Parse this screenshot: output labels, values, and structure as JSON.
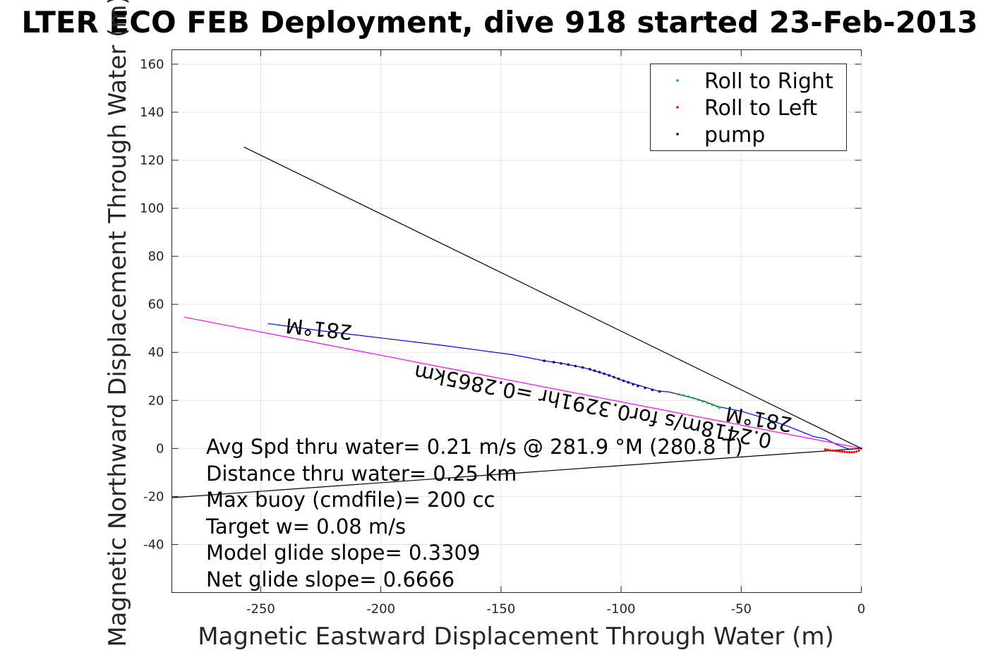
{
  "chart_data": {
    "type": "line",
    "title": "LTER ECO FEB Deployment, dive 918 started 23-Feb-2013",
    "xlabel": "Magnetic Eastward Displacement Through Water (m)",
    "ylabel": "Magnetic Northward Displacement Through Water (m)",
    "xlim": [
      -287,
      0
    ],
    "ylim": [
      -60,
      166
    ],
    "xticks": [
      -250,
      -200,
      -150,
      -100,
      -50,
      0
    ],
    "yticks": [
      -40,
      -20,
      0,
      20,
      40,
      60,
      80,
      100,
      120,
      140,
      160
    ],
    "grid": true,
    "legend": {
      "placement": "top-right",
      "entries": [
        {
          "label": "Roll to Right",
          "color": "#00cc00"
        },
        {
          "label": "Roll to Left",
          "color": "#ff0000"
        },
        {
          "label": "pump",
          "color": "#000000"
        }
      ]
    },
    "series": [
      {
        "color": "#0000ff",
        "x": [
          0,
          -5,
          -10,
          -15,
          -20,
          -30,
          -40,
          -50,
          -60,
          -65,
          -70,
          -76,
          -80,
          -85,
          -90,
          -95,
          -100,
          -105,
          -110,
          -115,
          -120,
          -125,
          -132,
          -145,
          -160,
          -175,
          -200,
          -225,
          -247
        ],
        "y": [
          0,
          -0.3,
          1.5,
          4,
          5,
          9,
          12.5,
          15.5,
          17.5,
          19.5,
          21,
          22.5,
          23.5,
          24,
          25.5,
          27,
          28.5,
          30.5,
          32,
          33.5,
          34.5,
          35.5,
          36.5,
          39,
          41,
          43,
          46,
          49,
          52
        ]
      },
      {
        "color": "#ff00ff",
        "x": [
          0,
          -50,
          -100,
          -150,
          -200,
          -250,
          -282
        ],
        "y": [
          0,
          9.7,
          19.4,
          29.1,
          38.8,
          48.5,
          54.7
        ]
      },
      {
        "color": "#000000",
        "x": [
          0,
          -257
        ],
        "y": [
          0,
          125.5
        ]
      },
      {
        "color": "#000000",
        "x": [
          0,
          -287
        ],
        "y": [
          0,
          -20.5
        ]
      }
    ],
    "markers": {
      "roll_right": {
        "color": "#00cc00",
        "x": [
          -76,
          -74,
          -72,
          -70,
          -68,
          -66,
          -64,
          -62,
          -60,
          -59
        ],
        "y": [
          22.5,
          22.1,
          21.6,
          21,
          20.3,
          19.6,
          18.9,
          18.2,
          17.5,
          17
        ]
      },
      "roll_left": {
        "color": "#ff0000",
        "x": [
          0,
          -1,
          -2,
          -3,
          -4,
          -5,
          -6,
          -7,
          -8,
          -9,
          -10,
          -11,
          -12,
          -13,
          -14,
          -15
        ],
        "y": [
          0,
          -0.9,
          -1.3,
          -1.5,
          -1.6,
          -1.6,
          -1.5,
          -1.4,
          -1.3,
          -1.2,
          -1.1,
          -1,
          -0.9,
          -0.8,
          -0.6,
          -0.4
        ]
      },
      "pump": {
        "color": "#000080",
        "x": [
          -132,
          -128,
          -125,
          -122,
          -119,
          -116,
          -113,
          -111,
          -109,
          -107,
          -105,
          -103,
          -101,
          -99,
          -97,
          -95,
          -93,
          -90,
          -87,
          -84
        ],
        "y": [
          36.5,
          35.9,
          35.4,
          34.9,
          34.3,
          33.7,
          33,
          32.4,
          31.8,
          31.1,
          30.4,
          29.7,
          29,
          28.2,
          27.5,
          26.7,
          26,
          25.2,
          24.4,
          23.7
        ]
      }
    },
    "annotations": {
      "avg_spd": "Avg Spd thru water=  0.21 m/s @ 281.9 °M (280.8 T)",
      "distance": "Distance thru water=  0.25 km",
      "max_buoy": "Max buoy (cmdfile)= 200 cc",
      "target_w": "Target w= 0.08 m/s",
      "model_glide": "Model glide slope= 0.3309",
      "net_glide": "Net glide slope= 0.6666",
      "heading_upper": "281°M",
      "heading_right": "281°M",
      "mid_line_label": "0.2418m/s for0.3291hr =0.2865km"
    }
  }
}
